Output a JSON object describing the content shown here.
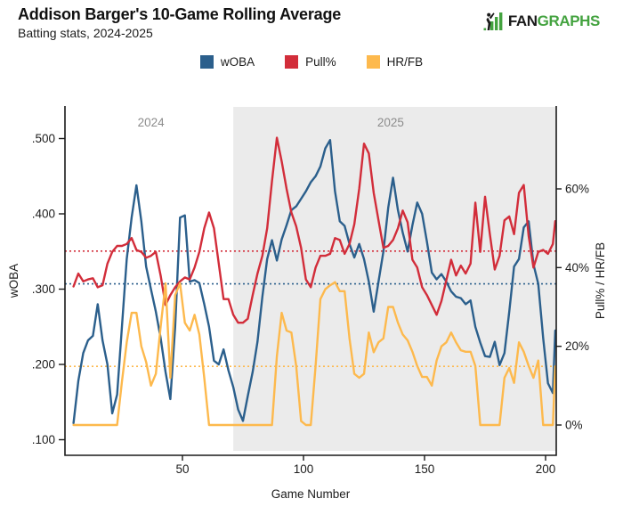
{
  "header": {
    "title": "Addison Barger's 10-Game Rolling Average",
    "subtitle": "Batting stats, 2024-2025"
  },
  "logo": {
    "fan": "FAN",
    "graphs": "GRAPHS",
    "green": "#44a340",
    "dark": "#1a1a1a"
  },
  "legend": [
    {
      "label": "wOBA",
      "color": "#2b5f8c"
    },
    {
      "label": "Pull%",
      "color": "#d22d3a"
    },
    {
      "label": "HR/FB",
      "color": "#fdb94d"
    }
  ],
  "chart_data": {
    "type": "line",
    "title": "Addison Barger's 10-Game Rolling Average",
    "subtitle": "Batting stats, 2024-2025",
    "xlabel": "Game Number",
    "ylabel_left": "wOBA",
    "ylabel_right": "Pull% / HR/FB",
    "x_ticks": [
      50,
      100,
      150,
      200
    ],
    "y_left_ticks": [
      0.1,
      0.2,
      0.3,
      0.4,
      0.5
    ],
    "y_left_tick_labels": [
      ".100",
      ".200",
      ".300",
      ".400",
      ".500"
    ],
    "y_left_range": [
      0.1,
      0.5
    ],
    "y_right_ticks": [
      0,
      20,
      40,
      60
    ],
    "y_right_tick_labels": [
      "0%",
      "20%",
      "40%",
      "60%"
    ],
    "y_right_range_shown": [
      0,
      60
    ],
    "grid": false,
    "legend_position": "top-center",
    "era_labels": [
      {
        "label": "2024",
        "center_game": 37
      },
      {
        "label": "2025",
        "center_game": 136
      }
    ],
    "shaded_region": {
      "label": "2025",
      "start_game": 71,
      "end_game": 204,
      "color": "#ebebeb"
    },
    "x": [
      5,
      7,
      9,
      11,
      13,
      15,
      17,
      19,
      21,
      23,
      25,
      27,
      29,
      31,
      33,
      35,
      37,
      39,
      41,
      43,
      45,
      47,
      49,
      51,
      53,
      55,
      57,
      59,
      61,
      63,
      65,
      67,
      69,
      71,
      73,
      75,
      77,
      79,
      81,
      83,
      85,
      87,
      89,
      91,
      93,
      95,
      97,
      99,
      101,
      103,
      105,
      107,
      109,
      111,
      113,
      115,
      117,
      119,
      121,
      123,
      125,
      127,
      129,
      131,
      133,
      135,
      137,
      139,
      141,
      143,
      145,
      147,
      149,
      151,
      153,
      155,
      157,
      159,
      161,
      163,
      165,
      167,
      169,
      171,
      173,
      175,
      177,
      179,
      181,
      183,
      185,
      187,
      189,
      191,
      193,
      195,
      197,
      199,
      201,
      203,
      204
    ],
    "series": [
      {
        "name": "wOBA",
        "axis": "left",
        "color": "#2b5f8c",
        "average": 0.307,
        "values": [
          0.122,
          0.178,
          0.215,
          0.232,
          0.238,
          0.28,
          0.232,
          0.2,
          0.135,
          0.16,
          0.25,
          0.34,
          0.395,
          0.438,
          0.39,
          0.33,
          0.3,
          0.27,
          0.235,
          0.19,
          0.154,
          0.25,
          0.395,
          0.398,
          0.31,
          0.312,
          0.308,
          0.28,
          0.25,
          0.205,
          0.2,
          0.22,
          0.192,
          0.17,
          0.14,
          0.125,
          0.158,
          0.19,
          0.23,
          0.29,
          0.34,
          0.365,
          0.338,
          0.366,
          0.385,
          0.405,
          0.41,
          0.42,
          0.43,
          0.442,
          0.45,
          0.463,
          0.487,
          0.498,
          0.43,
          0.39,
          0.384,
          0.36,
          0.342,
          0.36,
          0.34,
          0.31,
          0.27,
          0.31,
          0.35,
          0.408,
          0.448,
          0.405,
          0.375,
          0.35,
          0.385,
          0.415,
          0.4,
          0.363,
          0.322,
          0.313,
          0.32,
          0.31,
          0.297,
          0.29,
          0.288,
          0.28,
          0.285,
          0.25,
          0.229,
          0.211,
          0.21,
          0.23,
          0.199,
          0.215,
          0.27,
          0.33,
          0.34,
          0.382,
          0.39,
          0.333,
          0.307,
          0.235,
          0.175,
          0.162,
          0.245
        ]
      },
      {
        "name": "Pull%",
        "axis": "right",
        "color": "#d22d3a",
        "average": 44.2,
        "values": [
          35.2,
          38.5,
          36.5,
          37.0,
          37.3,
          35.0,
          35.5,
          41.0,
          44.0,
          45.5,
          45.5,
          46.0,
          47.5,
          44.5,
          44.0,
          42.5,
          43.0,
          44.0,
          38.0,
          30.5,
          33.0,
          35.0,
          36.5,
          37.5,
          37.0,
          40.0,
          44.0,
          50.0,
          54.0,
          50.0,
          41.0,
          32.0,
          32.0,
          28.0,
          26.0,
          26.0,
          27.0,
          33.0,
          38.5,
          43.0,
          50.0,
          62.0,
          73.0,
          67.0,
          60.0,
          54.0,
          50.5,
          45.0,
          37.0,
          35.0,
          40.0,
          43.0,
          43.0,
          43.5,
          47.5,
          47.0,
          43.5,
          46.0,
          51.0,
          60.0,
          71.5,
          69.0,
          59.0,
          52.0,
          45.0,
          45.5,
          47.0,
          50.0,
          54.5,
          51.5,
          42.0,
          40.0,
          35.0,
          33.0,
          30.5,
          28.0,
          31.5,
          36.8,
          42.0,
          38.0,
          40.5,
          38.5,
          41.0,
          56.5,
          44.0,
          58.0,
          48.5,
          39.5,
          43.0,
          52.0,
          53.0,
          48.5,
          59.0,
          61.0,
          48.0,
          40.0,
          44.0,
          44.5,
          43.5,
          46.0,
          51.8
        ]
      },
      {
        "name": "HR/FB",
        "axis": "right",
        "color": "#fdb94d",
        "average": 14.9,
        "values": [
          0,
          0,
          0,
          0,
          0,
          0,
          0,
          0,
          0,
          0,
          11,
          21,
          28.5,
          28.5,
          20,
          16,
          10,
          13,
          25,
          36,
          12,
          33,
          36,
          26,
          24,
          28,
          23,
          12,
          0,
          0,
          0,
          0,
          0,
          0,
          0,
          0,
          0,
          0,
          0,
          0,
          0,
          0,
          17.5,
          28.5,
          24,
          23.5,
          15,
          1,
          0,
          0,
          15,
          32,
          34.5,
          35.5,
          36.3,
          34,
          34,
          22,
          13,
          12,
          13,
          23.5,
          18.5,
          21,
          22,
          30,
          30,
          26,
          23,
          21.5,
          18.6,
          15,
          12.2,
          12.2,
          10,
          16.4,
          20,
          21,
          23.5,
          21,
          19,
          18.6,
          18.6,
          15,
          0,
          0,
          0,
          0,
          0,
          12,
          14.5,
          10.7,
          21,
          18.6,
          15,
          12,
          16.4,
          0,
          0,
          0,
          14.9
        ]
      }
    ]
  }
}
